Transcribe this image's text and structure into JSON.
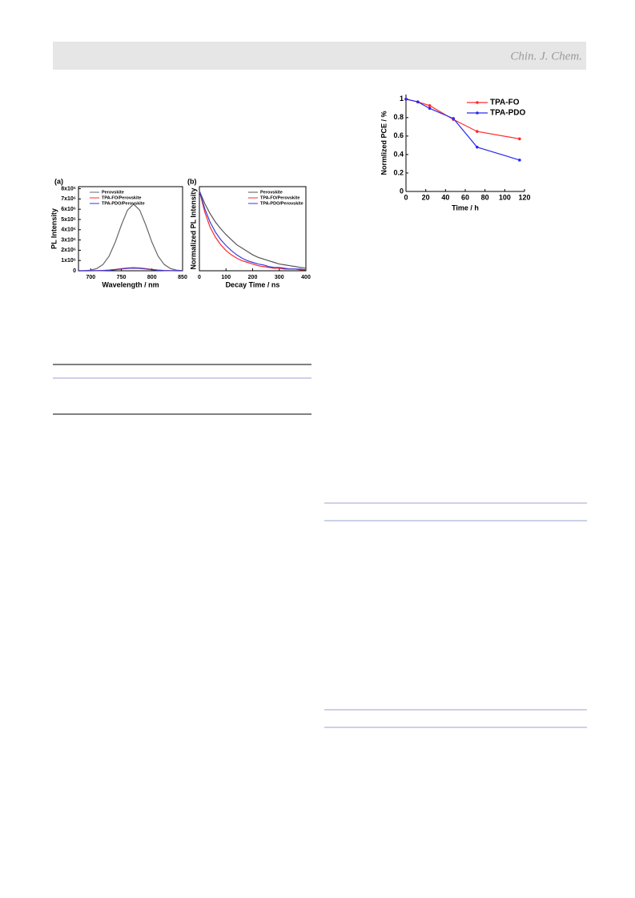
{
  "header": {
    "journal": "Chin. J. Chem."
  },
  "chart_data": [
    {
      "type": "line",
      "panel": "(a)",
      "xlabel": "Wavelength / nm",
      "ylabel": "PL Intensity",
      "x": [
        680,
        690,
        700,
        710,
        720,
        730,
        740,
        750,
        760,
        770,
        780,
        790,
        800,
        810,
        820,
        830,
        840,
        850
      ],
      "series": [
        {
          "name": "Perovskite",
          "color": "#666666",
          "values": [
            0,
            15000,
            60000,
            220000,
            610000,
            1430000,
            2780000,
            4450000,
            5910000,
            6500000,
            5910000,
            4450000,
            2780000,
            1430000,
            610000,
            220000,
            60000,
            15000
          ]
        },
        {
          "name": "TPA-FO/Perovskite",
          "color": "#ff2a2a",
          "values": [
            0,
            0,
            3000,
            10000,
            28000,
            66000,
            128000,
            205000,
            273000,
            300000,
            273000,
            205000,
            128000,
            66000,
            28000,
            10000,
            3000,
            0
          ]
        },
        {
          "name": "TPA-PDO/Perovskite",
          "color": "#3a3adf",
          "values": [
            0,
            0,
            2000,
            8000,
            24000,
            55000,
            107000,
            171000,
            228000,
            250000,
            228000,
            171000,
            107000,
            55000,
            24000,
            8000,
            2000,
            0
          ]
        }
      ],
      "xlim": [
        680,
        850
      ],
      "xticks": [
        700,
        750,
        800,
        850
      ],
      "ylim": [
        0,
        8200000
      ],
      "yticks": [
        0,
        {
          "value": 1000000,
          "label": "1x10⁶"
        },
        {
          "value": 2000000,
          "label": "2x10⁶"
        },
        {
          "value": 3000000,
          "label": "3x10⁶"
        },
        {
          "value": 4000000,
          "label": "4x10⁶"
        },
        {
          "value": 5000000,
          "label": "5x10⁶"
        },
        {
          "value": 6000000,
          "label": "6x10⁶"
        },
        {
          "value": 7000000,
          "label": "7x10⁶"
        },
        {
          "value": 8000000,
          "label": "8x10⁶"
        }
      ],
      "legend": "upper left",
      "grid": false
    },
    {
      "type": "line",
      "panel": "(b)",
      "xlabel": "Decay Time / ns",
      "ylabel": "Normalized PL Intensity",
      "x": [
        0,
        20,
        40,
        60,
        80,
        100,
        120,
        140,
        160,
        180,
        200,
        220,
        240,
        260,
        280,
        300,
        320,
        340,
        360,
        380,
        400
      ],
      "series": [
        {
          "name": "Perovskite",
          "color": "#555555",
          "values": [
            0.95,
            0.8,
            0.68,
            0.58,
            0.5,
            0.43,
            0.37,
            0.31,
            0.27,
            0.23,
            0.19,
            0.16,
            0.14,
            0.12,
            0.1,
            0.08,
            0.07,
            0.06,
            0.05,
            0.04,
            0.03
          ]
        },
        {
          "name": "TPA-FO/Perovskite",
          "color": "#ff2a2a",
          "values": [
            0.95,
            0.7,
            0.52,
            0.4,
            0.31,
            0.24,
            0.19,
            0.15,
            0.12,
            0.1,
            0.08,
            0.06,
            0.05,
            0.04,
            0.03,
            0.03,
            0.02,
            0.02,
            0.02,
            0.01,
            0.01
          ]
        },
        {
          "name": "TPA-PDO/Perovskite",
          "color": "#3a3adf",
          "values": [
            0.95,
            0.74,
            0.58,
            0.46,
            0.37,
            0.3,
            0.24,
            0.19,
            0.15,
            0.12,
            0.1,
            0.08,
            0.07,
            0.05,
            0.04,
            0.04,
            0.03,
            0.02,
            0.02,
            0.02,
            0.01
          ]
        }
      ],
      "xlim": [
        0,
        400
      ],
      "xticks": [
        0,
        100,
        200,
        300,
        400
      ],
      "ylim": [
        0,
        1
      ],
      "legend": "upper right",
      "grid": false
    },
    {
      "type": "line",
      "xlabel": "Time / h",
      "ylabel": "Normlized PCE / %",
      "x": [
        0,
        12,
        24,
        48,
        72,
        115
      ],
      "series": [
        {
          "name": "TPA-FO",
          "color": "#ff2a2a",
          "values": [
            1,
            0.97,
            0.93,
            0.78,
            0.65,
            0.57
          ]
        },
        {
          "name": "TPA-PDO",
          "color": "#2a2aef",
          "values": [
            1,
            0.97,
            0.9,
            0.79,
            0.48,
            0.34
          ]
        }
      ],
      "xlim": [
        0,
        120
      ],
      "xticks": [
        0,
        20,
        40,
        60,
        80,
        100,
        120
      ],
      "ylim": [
        0,
        1.05
      ],
      "yticks": [
        0,
        0.2,
        0.4,
        0.6,
        0.8,
        1
      ],
      "legend": "upper right",
      "grid": false,
      "markers": true
    }
  ]
}
